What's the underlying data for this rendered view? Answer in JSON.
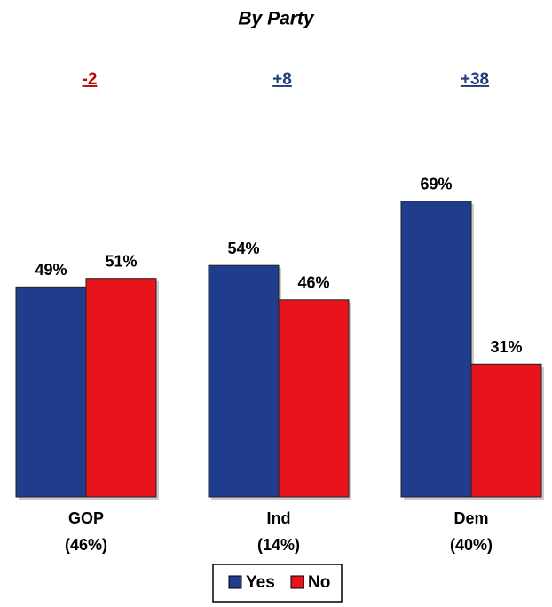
{
  "chart_data": {
    "type": "bar",
    "title": "By Party",
    "categories": [
      "GOP",
      "Ind",
      "Dem"
    ],
    "category_sublabels": [
      "(46%)",
      "(14%)",
      "(40%)"
    ],
    "annotations": [
      {
        "text": "-2",
        "color": "#c00000"
      },
      {
        "text": "+8",
        "color": "#1f3a7a"
      },
      {
        "text": "+38",
        "color": "#1f3a7a"
      }
    ],
    "series": [
      {
        "name": "Yes",
        "color": "#203c8c",
        "values": [
          49,
          54,
          69
        ],
        "value_labels": [
          "49%",
          "54%",
          "69%"
        ]
      },
      {
        "name": "No",
        "color": "#e8141c",
        "values": [
          51,
          46,
          31
        ],
        "value_labels": [
          "51%",
          "46%",
          "31%"
        ]
      }
    ],
    "legend": "bottom"
  }
}
